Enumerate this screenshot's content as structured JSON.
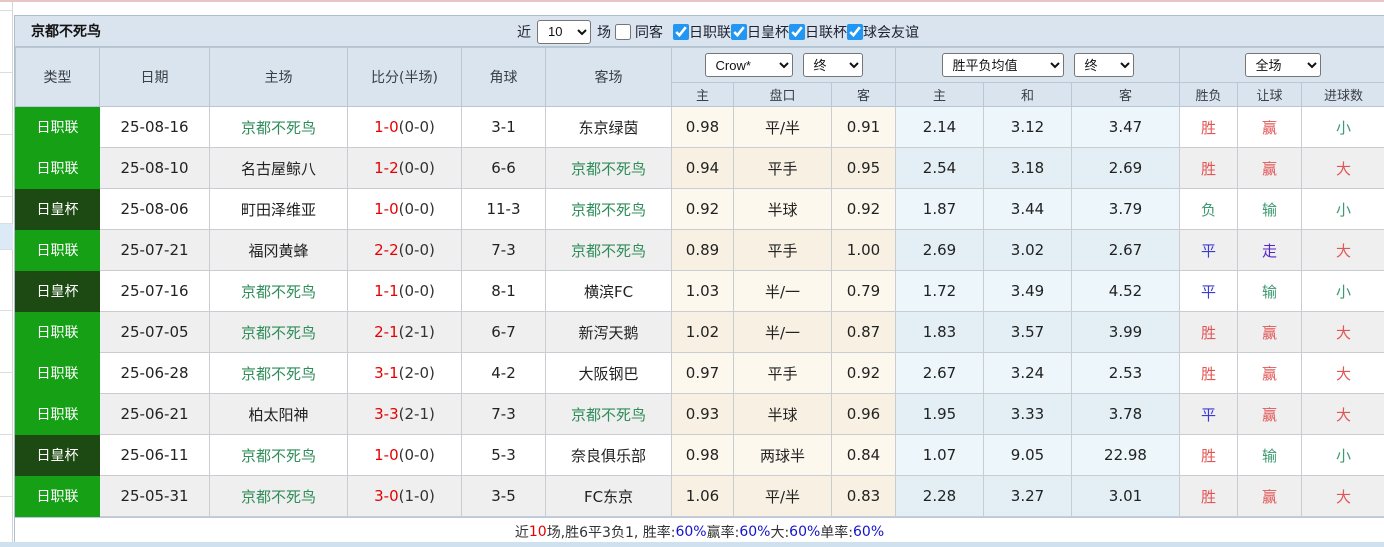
{
  "header": {
    "title": "京都不死鸟",
    "recent_label": "近",
    "recent_value": "10",
    "games_label": "场",
    "same_away_label": "同客",
    "same_away_checked": false,
    "league_filters": [
      {
        "label": "日职联",
        "checked": true
      },
      {
        "label": "日皇杯",
        "checked": true
      },
      {
        "label": "日联杯",
        "checked": true
      },
      {
        "label": "球会友谊",
        "checked": true
      }
    ]
  },
  "table": {
    "columns": [
      "类型",
      "日期",
      "主场",
      "比分(半场)",
      "角球",
      "客场"
    ],
    "selects": {
      "bookmaker": "Crow*",
      "bookmaker_time": "终",
      "average": "胜平负均值",
      "average_time": "终",
      "scope": "全场"
    },
    "subheaders": [
      "主",
      "盘口",
      "客",
      "主",
      "和",
      "客",
      "胜负",
      "让球",
      "进球数"
    ],
    "rows": [
      {
        "league": "日职联",
        "league_style": "bright",
        "date": "25-08-16",
        "home": "京都不死鸟",
        "home_team": true,
        "score": "1-0",
        "half": "(0-0)",
        "corner": "3-1",
        "away": "东京绿茵",
        "away_team": false,
        "ah": [
          "0.98",
          "平/半",
          "0.91"
        ],
        "eu": [
          "2.14",
          "3.12",
          "3.47"
        ],
        "result": [
          {
            "t": "胜",
            "c": "red"
          },
          {
            "t": "赢",
            "c": "red"
          },
          {
            "t": "小",
            "c": "green"
          }
        ]
      },
      {
        "league": "日职联",
        "league_style": "bright",
        "date": "25-08-10",
        "home": "名古屋鲸八",
        "home_team": false,
        "score": "1-2",
        "half": "(0-0)",
        "corner": "6-6",
        "away": "京都不死鸟",
        "away_team": true,
        "ah": [
          "0.94",
          "平手",
          "0.95"
        ],
        "eu": [
          "2.54",
          "3.18",
          "2.69"
        ],
        "result": [
          {
            "t": "胜",
            "c": "red"
          },
          {
            "t": "赢",
            "c": "red"
          },
          {
            "t": "大",
            "c": "red"
          }
        ]
      },
      {
        "league": "日皇杯",
        "league_style": "dark",
        "date": "25-08-06",
        "home": "町田泽维亚",
        "home_team": false,
        "score": "1-0",
        "half": "(0-0)",
        "corner": "11-3",
        "away": "京都不死鸟",
        "away_team": true,
        "ah": [
          "0.92",
          "半球",
          "0.92"
        ],
        "eu": [
          "1.87",
          "3.44",
          "3.79"
        ],
        "result": [
          {
            "t": "负",
            "c": "green"
          },
          {
            "t": "输",
            "c": "green"
          },
          {
            "t": "小",
            "c": "green"
          }
        ]
      },
      {
        "league": "日职联",
        "league_style": "bright",
        "date": "25-07-21",
        "home": "福冈黄蜂",
        "home_team": false,
        "score": "2-2",
        "half": "(0-0)",
        "corner": "7-3",
        "away": "京都不死鸟",
        "away_team": true,
        "ah": [
          "0.89",
          "平手",
          "1.00"
        ],
        "eu": [
          "2.69",
          "3.02",
          "2.67"
        ],
        "result": [
          {
            "t": "平",
            "c": "blue"
          },
          {
            "t": "走",
            "c": "purple"
          },
          {
            "t": "大",
            "c": "red"
          }
        ]
      },
      {
        "league": "日皇杯",
        "league_style": "dark",
        "date": "25-07-16",
        "home": "京都不死鸟",
        "home_team": true,
        "score": "1-1",
        "half": "(0-0)",
        "corner": "8-1",
        "away": "横滨FC",
        "away_team": false,
        "ah": [
          "1.03",
          "半/一",
          "0.79"
        ],
        "eu": [
          "1.72",
          "3.49",
          "4.52"
        ],
        "result": [
          {
            "t": "平",
            "c": "blue"
          },
          {
            "t": "输",
            "c": "green"
          },
          {
            "t": "小",
            "c": "green"
          }
        ]
      },
      {
        "league": "日职联",
        "league_style": "bright",
        "date": "25-07-05",
        "home": "京都不死鸟",
        "home_team": true,
        "score": "2-1",
        "half": "(2-1)",
        "corner": "6-7",
        "away": "新泻天鹅",
        "away_team": false,
        "ah": [
          "1.02",
          "半/一",
          "0.87"
        ],
        "eu": [
          "1.83",
          "3.57",
          "3.99"
        ],
        "result": [
          {
            "t": "胜",
            "c": "red"
          },
          {
            "t": "赢",
            "c": "red"
          },
          {
            "t": "大",
            "c": "red"
          }
        ]
      },
      {
        "league": "日职联",
        "league_style": "bright",
        "date": "25-06-28",
        "home": "京都不死鸟",
        "home_team": true,
        "score": "3-1",
        "half": "(2-0)",
        "corner": "4-2",
        "away": "大阪钢巴",
        "away_team": false,
        "ah": [
          "0.97",
          "平手",
          "0.92"
        ],
        "eu": [
          "2.67",
          "3.24",
          "2.53"
        ],
        "result": [
          {
            "t": "胜",
            "c": "red"
          },
          {
            "t": "赢",
            "c": "red"
          },
          {
            "t": "大",
            "c": "red"
          }
        ]
      },
      {
        "league": "日职联",
        "league_style": "bright",
        "date": "25-06-21",
        "home": "柏太阳神",
        "home_team": false,
        "score": "3-3",
        "half": "(2-1)",
        "corner": "7-3",
        "away": "京都不死鸟",
        "away_team": true,
        "ah": [
          "0.93",
          "半球",
          "0.96"
        ],
        "eu": [
          "1.95",
          "3.33",
          "3.78"
        ],
        "result": [
          {
            "t": "平",
            "c": "blue"
          },
          {
            "t": "赢",
            "c": "red"
          },
          {
            "t": "大",
            "c": "red"
          }
        ]
      },
      {
        "league": "日皇杯",
        "league_style": "dark",
        "date": "25-06-11",
        "home": "京都不死鸟",
        "home_team": true,
        "score": "1-0",
        "half": "(0-0)",
        "corner": "5-3",
        "away": "奈良俱乐部",
        "away_team": false,
        "ah": [
          "0.98",
          "两球半",
          "0.84"
        ],
        "eu": [
          "1.07",
          "9.05",
          "22.98"
        ],
        "result": [
          {
            "t": "胜",
            "c": "red"
          },
          {
            "t": "输",
            "c": "green"
          },
          {
            "t": "小",
            "c": "green"
          }
        ]
      },
      {
        "league": "日职联",
        "league_style": "bright",
        "date": "25-05-31",
        "home": "京都不死鸟",
        "home_team": true,
        "score": "3-0",
        "half": "(1-0)",
        "corner": "3-5",
        "away": "FC东京",
        "away_team": false,
        "ah": [
          "1.06",
          "平/半",
          "0.83"
        ],
        "eu": [
          "2.28",
          "3.27",
          "3.01"
        ],
        "result": [
          {
            "t": "胜",
            "c": "red"
          },
          {
            "t": "赢",
            "c": "red"
          },
          {
            "t": "大",
            "c": "red"
          }
        ]
      }
    ]
  },
  "footer": {
    "parts": [
      {
        "t": "近",
        "c": "dark"
      },
      {
        "t": "10",
        "c": "red"
      },
      {
        "t": "场,胜6平3负1, 胜率:",
        "c": "dark"
      },
      {
        "t": "60%",
        "c": "blue"
      },
      {
        "t": " 赢率:",
        "c": "dark"
      },
      {
        "t": "60%",
        "c": "blue"
      },
      {
        "t": " 大:",
        "c": "dark"
      },
      {
        "t": "60%",
        "c": "blue"
      },
      {
        "t": " 单率:",
        "c": "dark"
      },
      {
        "t": "60%",
        "c": "blue"
      }
    ]
  }
}
